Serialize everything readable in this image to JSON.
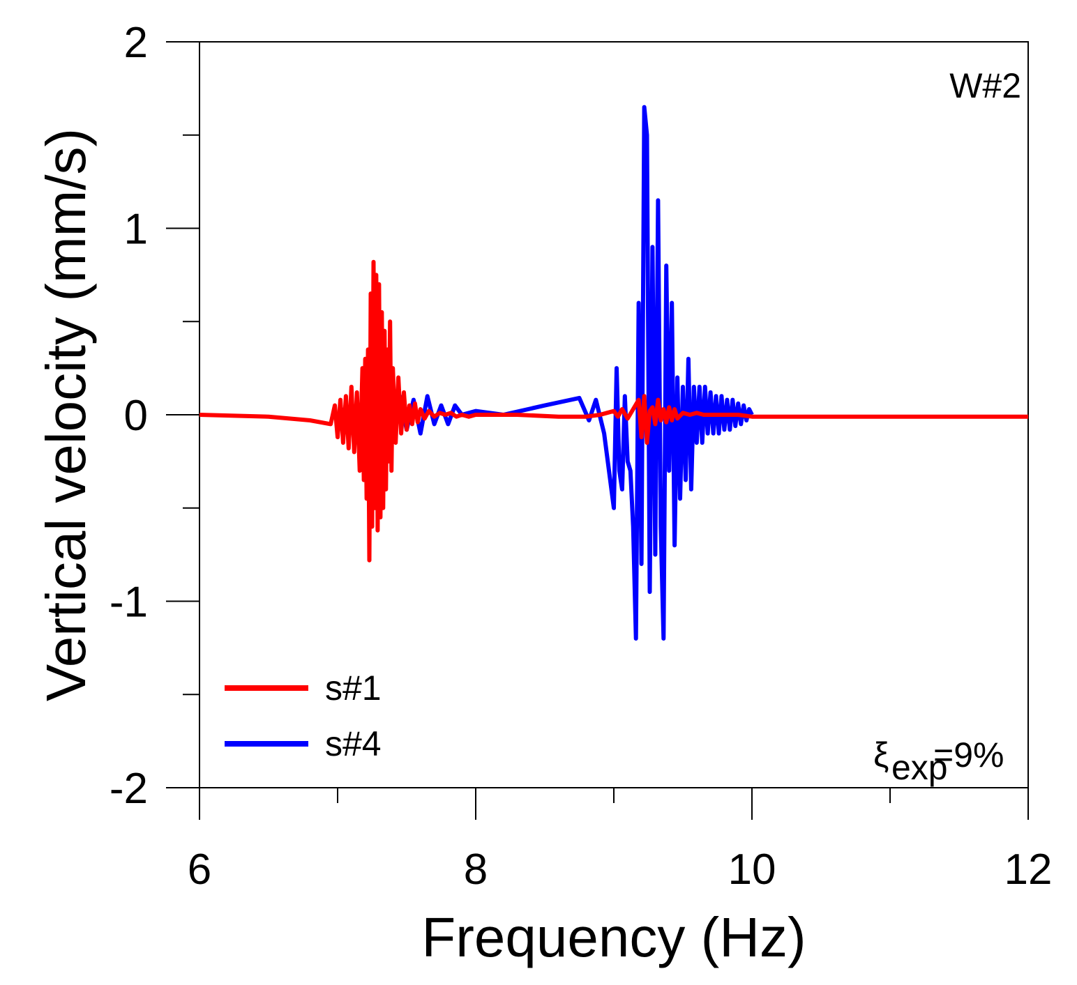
{
  "chart_data": {
    "type": "line",
    "title": "",
    "xlabel": "Frequency  (Hz)",
    "ylabel": "Vertical velocity (mm/s)",
    "xlim": [
      6,
      12
    ],
    "ylim": [
      -2,
      2
    ],
    "xticks": [
      6,
      8,
      10,
      12
    ],
    "xtick_labels": [
      "6",
      "8",
      "10",
      "12"
    ],
    "yticks": [
      -2,
      -1,
      0,
      1,
      2
    ],
    "ytick_labels": [
      "-2",
      "-1",
      "0",
      "1",
      "2"
    ],
    "grid": false,
    "legend": {
      "position": "bottom-left"
    },
    "annotations": {
      "panel_label": "W#2",
      "damping_symbol": "ξ",
      "damping_subscript": "exp",
      "damping_value": "=9%"
    },
    "series": [
      {
        "name": "s#1",
        "color": "#ff0000",
        "x": [
          6.0,
          6.5,
          6.8,
          6.95,
          6.98,
          7.0,
          7.02,
          7.04,
          7.06,
          7.08,
          7.1,
          7.12,
          7.14,
          7.16,
          7.18,
          7.19,
          7.2,
          7.21,
          7.22,
          7.23,
          7.24,
          7.25,
          7.26,
          7.27,
          7.28,
          7.29,
          7.3,
          7.31,
          7.32,
          7.33,
          7.34,
          7.35,
          7.36,
          7.37,
          7.38,
          7.39,
          7.4,
          7.42,
          7.44,
          7.46,
          7.48,
          7.5,
          7.52,
          7.54,
          7.56,
          7.58,
          7.6,
          7.63,
          7.66,
          7.7,
          7.74,
          7.78,
          7.82,
          7.86,
          7.9,
          7.95,
          8.0,
          8.3,
          8.6,
          8.8,
          8.9,
          8.95,
          9.0,
          9.03,
          9.06,
          9.1,
          9.14,
          9.18,
          9.2,
          9.22,
          9.24,
          9.26,
          9.28,
          9.3,
          9.32,
          9.34,
          9.36,
          9.38,
          9.4,
          9.42,
          9.44,
          9.46,
          9.5,
          9.55,
          9.6,
          9.65,
          9.7,
          9.8,
          9.9,
          10.0,
          10.5,
          11.0,
          11.5,
          12.0
        ],
        "y": [
          0.0,
          -0.01,
          -0.03,
          -0.05,
          0.05,
          -0.12,
          0.08,
          -0.15,
          0.1,
          -0.18,
          0.15,
          -0.2,
          0.12,
          -0.3,
          0.25,
          -0.35,
          0.3,
          -0.45,
          0.35,
          -0.78,
          0.65,
          -0.6,
          0.82,
          -0.5,
          0.75,
          -0.62,
          0.7,
          -0.55,
          0.55,
          -0.5,
          0.45,
          -0.4,
          0.35,
          -0.25,
          0.5,
          -0.3,
          0.25,
          -0.15,
          0.2,
          -0.1,
          0.12,
          -0.08,
          0.05,
          -0.05,
          0.06,
          -0.04,
          0.03,
          -0.02,
          0.02,
          -0.01,
          0.01,
          0.0,
          0.01,
          -0.01,
          0.0,
          -0.01,
          0.0,
          0.0,
          -0.01,
          -0.01,
          0.0,
          0.01,
          0.02,
          -0.01,
          0.03,
          -0.02,
          0.03,
          0.08,
          -0.12,
          0.1,
          -0.15,
          0.02,
          0.04,
          -0.05,
          0.08,
          -0.03,
          0.03,
          -0.04,
          0.04,
          -0.03,
          0.03,
          -0.02,
          0.01,
          0.0,
          0.01,
          0.0,
          0.0,
          0.0,
          0.0,
          -0.01,
          -0.01,
          -0.01,
          -0.01,
          -0.01
        ]
      },
      {
        "name": "s#4",
        "color": "#0000ff",
        "x": [
          7.0,
          7.05,
          7.1,
          7.15,
          7.2,
          7.25,
          7.3,
          7.35,
          7.4,
          7.45,
          7.5,
          7.55,
          7.6,
          7.65,
          7.7,
          7.75,
          7.8,
          7.85,
          7.9,
          8.0,
          8.2,
          8.5,
          8.75,
          8.82,
          8.87,
          8.93,
          9.0,
          9.02,
          9.04,
          9.06,
          9.08,
          9.1,
          9.12,
          9.14,
          9.16,
          9.18,
          9.2,
          9.22,
          9.24,
          9.26,
          9.28,
          9.3,
          9.32,
          9.34,
          9.36,
          9.38,
          9.4,
          9.42,
          9.44,
          9.46,
          9.48,
          9.5,
          9.52,
          9.54,
          9.56,
          9.58,
          9.6,
          9.62,
          9.64,
          9.66,
          9.68,
          9.7,
          9.72,
          9.74,
          9.76,
          9.78,
          9.8,
          9.82,
          9.84,
          9.86,
          9.88,
          9.9,
          9.92,
          9.94,
          9.96,
          9.98,
          10.0
        ],
        "y": [
          0.0,
          0.03,
          -0.05,
          0.05,
          -0.08,
          0.08,
          -0.1,
          0.1,
          -0.12,
          0.1,
          -0.08,
          0.08,
          -0.1,
          0.1,
          -0.05,
          0.05,
          -0.05,
          0.05,
          0.0,
          0.02,
          0.0,
          0.05,
          0.09,
          -0.03,
          0.08,
          -0.1,
          -0.5,
          0.25,
          -0.3,
          -0.4,
          0.1,
          -0.25,
          -0.3,
          -0.6,
          -1.2,
          0.6,
          -0.8,
          1.65,
          1.5,
          -0.95,
          0.9,
          -0.75,
          1.15,
          -0.6,
          -1.2,
          0.8,
          -0.3,
          0.6,
          -0.7,
          0.2,
          -0.45,
          0.15,
          -0.35,
          0.3,
          -0.4,
          0.15,
          -0.15,
          0.15,
          -0.15,
          0.15,
          -0.1,
          0.12,
          -0.1,
          0.1,
          -0.1,
          0.1,
          -0.08,
          0.08,
          -0.08,
          0.08,
          -0.06,
          0.06,
          -0.05,
          0.05,
          -0.03,
          0.03,
          0.0
        ]
      }
    ]
  }
}
